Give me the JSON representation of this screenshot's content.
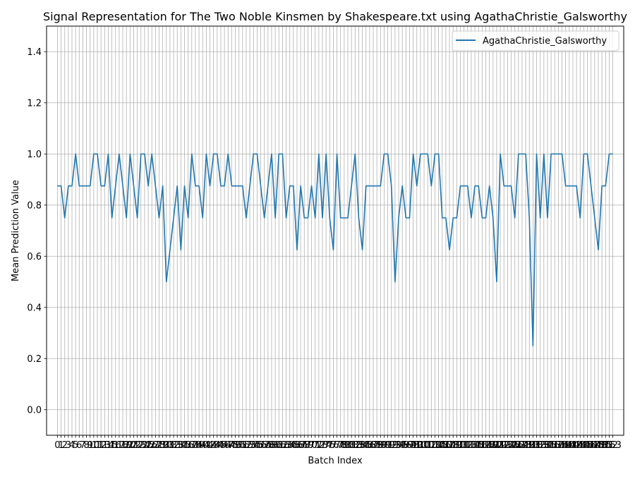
{
  "chart_data": {
    "type": "line",
    "title": "Signal Representation for The Two Noble Kinsmen by Shakespeare.txt using AgathaChristie_Galsworthy",
    "xlabel": "Batch Index",
    "ylabel": "Mean Prediction Value",
    "xlim": [
      -3,
      156
    ],
    "ylim": [
      -0.1,
      1.5
    ],
    "yticks": [
      0.0,
      0.2,
      0.4,
      0.6,
      0.8,
      1.0,
      1.2,
      1.4
    ],
    "ytick_labels": [
      "0.0",
      "0.2",
      "0.4",
      "0.6",
      "0.8",
      "1.0",
      "1.2",
      "1.4"
    ],
    "xticks_from": 0,
    "xticks_to": 153,
    "grid": true,
    "legend": "top-right",
    "series": [
      {
        "name": "AgathaChristie_Galsworthy",
        "color": "#1f77b4",
        "values": [
          0.875,
          0.875,
          0.75,
          0.875,
          0.875,
          1.0,
          0.875,
          0.875,
          0.875,
          0.875,
          1.0,
          1.0,
          0.875,
          0.875,
          1.0,
          0.75,
          0.875,
          1.0,
          0.875,
          0.75,
          1.0,
          0.875,
          0.75,
          1.0,
          1.0,
          0.875,
          1.0,
          0.875,
          0.75,
          0.875,
          0.5,
          0.625,
          0.75,
          0.875,
          0.625,
          0.875,
          0.75,
          1.0,
          0.875,
          0.875,
          0.75,
          1.0,
          0.875,
          1.0,
          1.0,
          0.875,
          0.875,
          1.0,
          0.875,
          0.875,
          0.875,
          0.875,
          0.75,
          0.875,
          1.0,
          1.0,
          0.875,
          0.75,
          0.875,
          1.0,
          0.75,
          1.0,
          1.0,
          0.75,
          0.875,
          0.875,
          0.625,
          0.875,
          0.75,
          0.75,
          0.875,
          0.75,
          1.0,
          0.75,
          1.0,
          0.75,
          0.625,
          1.0,
          0.75,
          0.75,
          0.75,
          0.875,
          1.0,
          0.75,
          0.625,
          0.875,
          0.875,
          0.875,
          0.875,
          0.875,
          1.0,
          1.0,
          0.875,
          0.5,
          0.75,
          0.875,
          0.75,
          0.75,
          1.0,
          0.875,
          1.0,
          1.0,
          1.0,
          0.875,
          1.0,
          1.0,
          0.75,
          0.75,
          0.625,
          0.75,
          0.75,
          0.875,
          0.875,
          0.875,
          0.75,
          0.875,
          0.875,
          0.75,
          0.75,
          0.875,
          0.75,
          0.5,
          1.0,
          0.875,
          0.875,
          0.875,
          0.75,
          1.0,
          1.0,
          1.0,
          0.75,
          0.25,
          1.0,
          0.75,
          1.0,
          0.75,
          1.0,
          1.0,
          1.0,
          1.0,
          0.875,
          0.875,
          0.875,
          0.875,
          0.75,
          1.0,
          1.0,
          0.875,
          0.75,
          0.625,
          0.875,
          0.875,
          1.0,
          1.0
        ]
      }
    ]
  }
}
